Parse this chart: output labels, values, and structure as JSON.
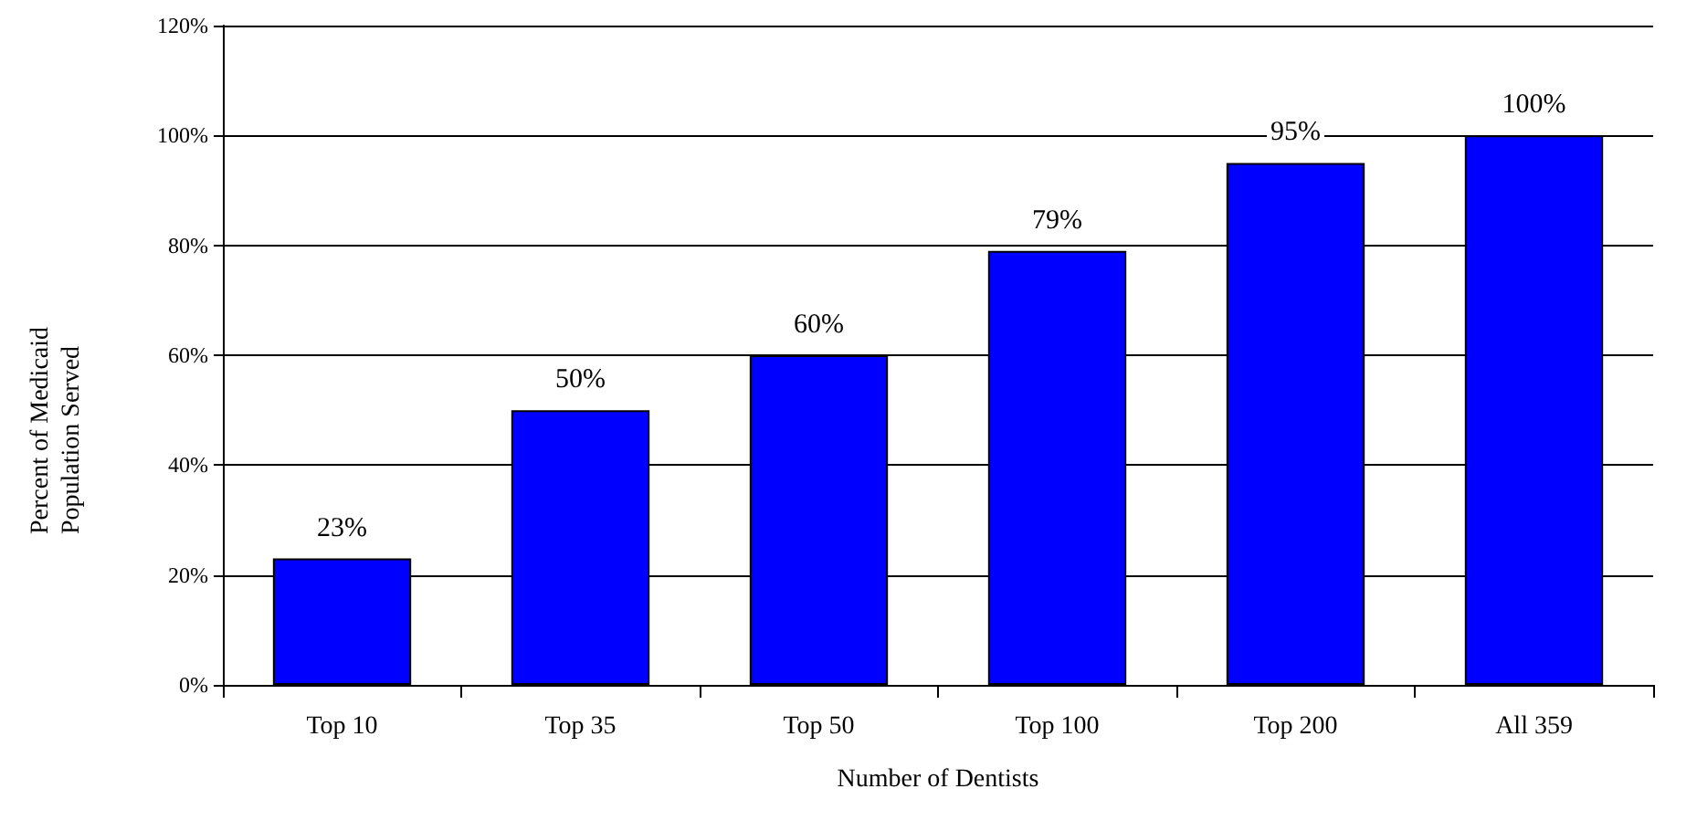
{
  "chart_data": {
    "type": "bar",
    "xlabel": "Number of Dentists",
    "ylabel": "Percent of Medicaid Population Served",
    "categories": [
      "Top 10",
      "Top 35",
      "Top 50",
      "Top 100",
      "Top 200",
      "All 359"
    ],
    "values": [
      23,
      50,
      60,
      79,
      95,
      100
    ],
    "color": "#0000ff",
    "value_labels": [
      "23%",
      "50%",
      "60%",
      "79%",
      "95%",
      "100%"
    ],
    "ylim": [
      0,
      120
    ],
    "yticks": [
      {
        "value": 0,
        "label": "0%"
      },
      {
        "value": 20,
        "label": "20%"
      },
      {
        "value": 40,
        "label": "40%"
      },
      {
        "value": 60,
        "label": "60%"
      },
      {
        "value": 80,
        "label": "80%"
      },
      {
        "value": 100,
        "label": "100%"
      },
      {
        "value": 120,
        "label": "120%"
      }
    ],
    "grid": "y"
  }
}
